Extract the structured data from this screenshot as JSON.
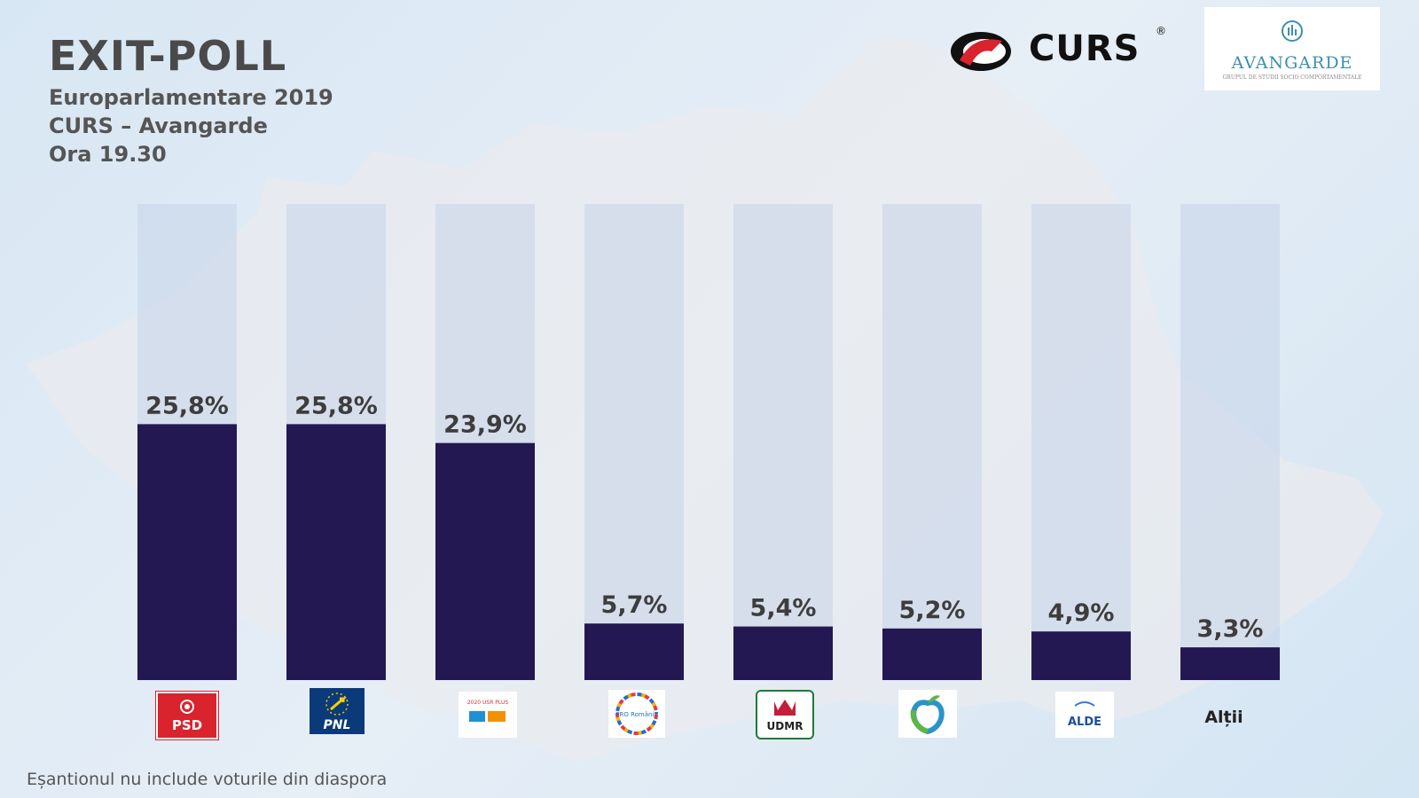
{
  "title": "EXIT-POLL",
  "subtitle_lines": [
    "Europarlamentare 2019",
    "CURS – Avangarde",
    "Ora 19.30"
  ],
  "footer": "Eșantionul nu include voturile din diaspora",
  "brands": {
    "curs": "CURS",
    "curs_reg": "®",
    "avangarde": "AVANGARDE",
    "avangarde_sub": "GRUPUL DE STUDII SOCIO COMPORTAMENTALE"
  },
  "colors": {
    "bar": "#241853",
    "bar_bg": "#c7d3e8",
    "psd": "#d9232d",
    "pnl": "#0b3a7b",
    "usr": "#1e90d6",
    "udmr": "#1f7a3a"
  },
  "chart_data": {
    "type": "bar",
    "title": "EXIT-POLL",
    "categories": [
      "PSD",
      "PNL",
      "Alianța 2020 USR PLUS",
      "PRO România",
      "UDMR",
      "PMP",
      "ALDE",
      "Alții"
    ],
    "values": [
      25.8,
      25.8,
      23.9,
      5.7,
      5.4,
      5.2,
      4.9,
      3.3
    ],
    "value_labels": [
      "25,8%",
      "25,8%",
      "23,9%",
      "5,7%",
      "5,4%",
      "5,2%",
      "4,9%",
      "3,3%"
    ],
    "ylim": [
      0,
      48
    ],
    "logo_texts": [
      "PSD",
      "PNL",
      "2020 USR PLUS",
      "PRO România",
      "UDMR",
      "",
      "ALDE",
      "Alții"
    ],
    "xlabel": "",
    "ylabel": ""
  }
}
